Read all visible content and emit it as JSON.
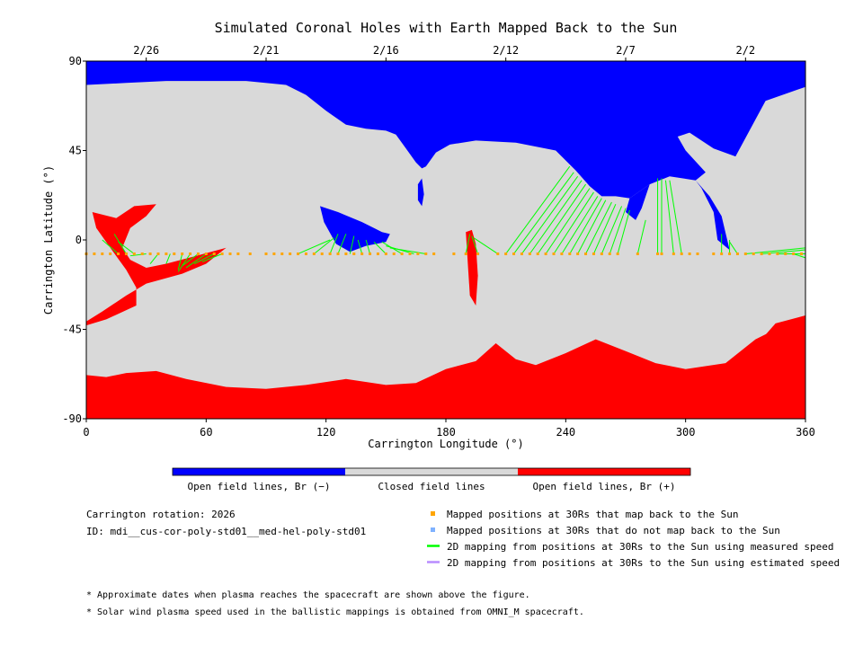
{
  "chart_data": {
    "type": "map",
    "title": "Simulated Coronal Holes with Earth Mapped Back to the Sun",
    "xlabel": "Carrington Longitude (°)",
    "ylabel": "Carrington Latitude (°)",
    "xlim": [
      0,
      360
    ],
    "ylim": [
      -90,
      90
    ],
    "x_ticks": [
      "0",
      "60",
      "120",
      "180",
      "240",
      "300",
      "360"
    ],
    "y_ticks": [
      "90",
      "45",
      "0",
      "-45",
      "-90"
    ],
    "top_date_ticks": [
      {
        "label": "2/26",
        "lon": 30
      },
      {
        "label": "2/21",
        "lon": 90
      },
      {
        "label": "2/16",
        "lon": 150
      },
      {
        "label": "2/12",
        "lon": 210
      },
      {
        "label": "2/7",
        "lon": 270
      },
      {
        "label": "2/2",
        "lon": 330
      }
    ],
    "colorbar": [
      {
        "label": "Open field lines, Br (−)",
        "color": "#0000ff"
      },
      {
        "label": "Closed field lines",
        "color": "#d9d9d9"
      },
      {
        "label": "Open field lines, Br (+)",
        "color": "#ff0000"
      }
    ],
    "north_boundary": [
      [
        0,
        78
      ],
      [
        20,
        79
      ],
      [
        40,
        80
      ],
      [
        60,
        80
      ],
      [
        80,
        80
      ],
      [
        100,
        78
      ],
      [
        110,
        73
      ],
      [
        120,
        65
      ],
      [
        130,
        58
      ],
      [
        140,
        56
      ],
      [
        150,
        55
      ],
      [
        155,
        53
      ],
      [
        160,
        46
      ],
      [
        165,
        39
      ],
      [
        168,
        36
      ],
      [
        170,
        37
      ],
      [
        175,
        44
      ],
      [
        182,
        48
      ],
      [
        195,
        50
      ],
      [
        215,
        49
      ],
      [
        235,
        45
      ],
      [
        245,
        35
      ],
      [
        252,
        27
      ],
      [
        258,
        22
      ],
      [
        265,
        22
      ],
      [
        272,
        21
      ],
      [
        282,
        28
      ],
      [
        292,
        32
      ],
      [
        305,
        30
      ],
      [
        310,
        34
      ],
      [
        300,
        45
      ],
      [
        296,
        52
      ],
      [
        302,
        54
      ],
      [
        314,
        46
      ],
      [
        325,
        42
      ],
      [
        340,
        70
      ],
      [
        360,
        77
      ]
    ],
    "south_boundary": [
      [
        0,
        -68
      ],
      [
        10,
        -69
      ],
      [
        20,
        -67
      ],
      [
        35,
        -66
      ],
      [
        50,
        -70
      ],
      [
        70,
        -74
      ],
      [
        90,
        -75
      ],
      [
        110,
        -73
      ],
      [
        130,
        -70
      ],
      [
        150,
        -73
      ],
      [
        165,
        -72
      ],
      [
        180,
        -65
      ],
      [
        195,
        -61
      ],
      [
        205,
        -52
      ],
      [
        215,
        -60
      ],
      [
        225,
        -63
      ],
      [
        240,
        -57
      ],
      [
        255,
        -50
      ],
      [
        270,
        -56
      ],
      [
        285,
        -62
      ],
      [
        300,
        -65
      ],
      [
        320,
        -62
      ],
      [
        335,
        -50
      ],
      [
        345,
        -45
      ],
      [
        360,
        -38
      ]
    ],
    "coronal_holes": [
      {
        "sign": "negative",
        "points": [
          [
            117,
            17
          ],
          [
            126,
            14
          ],
          [
            138,
            9
          ],
          [
            148,
            4
          ],
          [
            152,
            3
          ],
          [
            150,
            -1
          ],
          [
            140,
            -3
          ],
          [
            132,
            -6
          ],
          [
            125,
            -2
          ],
          [
            119,
            9
          ]
        ]
      },
      {
        "sign": "negative",
        "points": [
          [
            168,
            31
          ],
          [
            169,
            23
          ],
          [
            168,
            17
          ],
          [
            166,
            20
          ],
          [
            166,
            28
          ]
        ]
      },
      {
        "sign": "negative",
        "points": [
          [
            272,
            21
          ],
          [
            282,
            28
          ],
          [
            278,
            16
          ],
          [
            275,
            10
          ],
          [
            270,
            14
          ]
        ]
      },
      {
        "sign": "negative",
        "points": [
          [
            305,
            30
          ],
          [
            312,
            22
          ],
          [
            318,
            12
          ],
          [
            322,
            -5
          ],
          [
            316,
            0
          ],
          [
            314,
            14
          ],
          [
            308,
            26
          ]
        ]
      },
      {
        "sign": "positive",
        "points": [
          [
            3,
            14
          ],
          [
            15,
            11
          ],
          [
            24,
            17
          ],
          [
            35,
            18
          ],
          [
            30,
            12
          ],
          [
            22,
            6
          ],
          [
            18,
            -4
          ],
          [
            22,
            -10
          ],
          [
            30,
            -14
          ],
          [
            40,
            -12
          ],
          [
            55,
            -8
          ],
          [
            70,
            -4
          ],
          [
            60,
            -12
          ],
          [
            48,
            -17
          ],
          [
            30,
            -22
          ],
          [
            20,
            -28
          ],
          [
            8,
            -36
          ],
          [
            0,
            -41
          ],
          [
            0,
            -43
          ],
          [
            10,
            -40
          ],
          [
            25,
            -33
          ],
          [
            25,
            -24
          ],
          [
            20,
            -15
          ],
          [
            12,
            -4
          ],
          [
            5,
            6
          ]
        ]
      },
      {
        "sign": "positive",
        "points": [
          [
            190,
            4
          ],
          [
            193,
            5
          ],
          [
            195,
            -2
          ],
          [
            196,
            -18
          ],
          [
            195,
            -33
          ],
          [
            192,
            -28
          ],
          [
            191,
            -12
          ]
        ]
      },
      {
        "sign": "positive",
        "points": [
          [
            360,
            -38
          ],
          [
            345,
            -42
          ],
          [
            338,
            -50
          ],
          [
            345,
            -62
          ],
          [
            360,
            -68
          ]
        ]
      }
    ],
    "mapped_positions_lat": -7,
    "mapped_positions_lon": [
      0,
      4,
      8,
      12,
      16,
      20,
      24,
      28,
      32,
      36,
      40,
      44,
      48,
      52,
      56,
      60,
      64,
      68,
      72,
      76,
      82,
      90,
      94,
      98,
      102,
      106,
      110,
      114,
      118,
      122,
      126,
      130,
      134,
      138,
      142,
      146,
      150,
      154,
      158,
      162,
      166,
      170,
      174,
      184,
      190,
      196,
      206,
      210,
      214,
      218,
      222,
      226,
      230,
      234,
      238,
      242,
      246,
      250,
      254,
      258,
      262,
      266,
      276,
      286,
      288,
      294,
      298,
      302,
      306,
      314,
      318,
      322,
      326,
      330,
      334,
      338,
      342,
      346,
      350,
      354,
      358
    ],
    "mapped_lines_measured": [
      [
        [
          16,
          -7
        ],
        [
          8,
          0
        ]
      ],
      [
        [
          20,
          -7
        ],
        [
          14,
          3
        ]
      ],
      [
        [
          24,
          -7
        ],
        [
          16,
          -1
        ]
      ],
      [
        [
          30,
          -7
        ],
        [
          22,
          -8
        ]
      ],
      [
        [
          36,
          -7
        ],
        [
          32,
          -12
        ]
      ],
      [
        [
          42,
          -7
        ],
        [
          40,
          -12
        ]
      ],
      [
        [
          48,
          -7
        ],
        [
          46,
          -15
        ]
      ],
      [
        [
          52,
          -7
        ],
        [
          46,
          -16
        ]
      ],
      [
        [
          56,
          -7
        ],
        [
          48,
          -13
        ]
      ],
      [
        [
          60,
          -7
        ],
        [
          50,
          -14
        ]
      ],
      [
        [
          64,
          -7
        ],
        [
          54,
          -12
        ]
      ],
      [
        [
          68,
          -7
        ],
        [
          58,
          -11
        ]
      ],
      [
        [
          106,
          -7
        ],
        [
          122,
          0
        ]
      ],
      [
        [
          114,
          -7
        ],
        [
          124,
          1
        ]
      ],
      [
        [
          122,
          -7
        ],
        [
          126,
          3
        ]
      ],
      [
        [
          126,
          -7
        ],
        [
          130,
          3
        ]
      ],
      [
        [
          132,
          -7
        ],
        [
          134,
          2
        ]
      ],
      [
        [
          138,
          -7
        ],
        [
          136,
          0
        ]
      ],
      [
        [
          142,
          -7
        ],
        [
          140,
          0
        ]
      ],
      [
        [
          150,
          -7
        ],
        [
          144,
          -1
        ]
      ],
      [
        [
          158,
          -7
        ],
        [
          148,
          -1
        ]
      ],
      [
        [
          164,
          -7
        ],
        [
          150,
          -3
        ]
      ],
      [
        [
          170,
          -7
        ],
        [
          152,
          -4
        ]
      ],
      [
        [
          190,
          -7
        ],
        [
          192,
          3
        ]
      ],
      [
        [
          196,
          -7
        ],
        [
          193,
          2
        ]
      ],
      [
        [
          206,
          -7
        ],
        [
          194,
          1
        ]
      ],
      [
        [
          210,
          -7
        ],
        [
          242,
          37
        ]
      ],
      [
        [
          214,
          -7
        ],
        [
          244,
          34
        ]
      ],
      [
        [
          218,
          -7
        ],
        [
          246,
          32
        ]
      ],
      [
        [
          222,
          -7
        ],
        [
          248,
          30
        ]
      ],
      [
        [
          226,
          -7
        ],
        [
          250,
          28
        ]
      ],
      [
        [
          230,
          -7
        ],
        [
          252,
          26
        ]
      ],
      [
        [
          234,
          -7
        ],
        [
          254,
          24
        ]
      ],
      [
        [
          238,
          -7
        ],
        [
          256,
          22
        ]
      ],
      [
        [
          242,
          -7
        ],
        [
          258,
          21
        ]
      ],
      [
        [
          246,
          -7
        ],
        [
          260,
          20
        ]
      ],
      [
        [
          250,
          -7
        ],
        [
          263,
          19
        ]
      ],
      [
        [
          254,
          -7
        ],
        [
          265,
          18
        ]
      ],
      [
        [
          258,
          -7
        ],
        [
          268,
          17
        ]
      ],
      [
        [
          262,
          -7
        ],
        [
          270,
          16
        ]
      ],
      [
        [
          266,
          -7
        ],
        [
          272,
          15
        ]
      ],
      [
        [
          276,
          -7
        ],
        [
          280,
          10
        ]
      ],
      [
        [
          286,
          -7
        ],
        [
          286,
          31
        ]
      ],
      [
        [
          288,
          -7
        ],
        [
          288,
          31
        ]
      ],
      [
        [
          294,
          -7
        ],
        [
          290,
          30
        ]
      ],
      [
        [
          298,
          -7
        ],
        [
          292,
          30
        ]
      ],
      [
        [
          318,
          -7
        ],
        [
          318,
          3
        ]
      ],
      [
        [
          322,
          -7
        ],
        [
          322,
          0
        ]
      ],
      [
        [
          326,
          -7
        ],
        [
          322,
          -1
        ]
      ],
      [
        [
          330,
          -7
        ],
        [
          360,
          -4
        ]
      ],
      [
        [
          338,
          -7
        ],
        [
          360,
          -5
        ]
      ],
      [
        [
          346,
          -7
        ],
        [
          360,
          -7
        ]
      ],
      [
        [
          354,
          -7
        ],
        [
          360,
          -9
        ]
      ]
    ],
    "carrington_rotation": "Carrington rotation: 2026",
    "model_id": "ID: mdi__cus-cor-poly-std01__med-hel-poly-std01",
    "legend": [
      {
        "label": "Mapped positions at 30Rs that map back to the Sun",
        "color": "#ffa500",
        "kind": "square"
      },
      {
        "label": "Mapped positions at 30Rs that do not map back to the Sun",
        "color": "#7fb2ff",
        "kind": "square"
      },
      {
        "label": "2D mapping from positions at 30Rs to the Sun using measured speed",
        "color": "#00ff00",
        "kind": "line"
      },
      {
        "label": "2D mapping from positions at 30Rs to the Sun using estimated speed",
        "color": "#b98cff",
        "kind": "line"
      }
    ],
    "footnotes": [
      "* Approximate dates when plasma reaches the spacecraft are shown above the figure.",
      "* Solar wind plasma speed used in the ballistic mappings is obtained from OMNI_M spacecraft."
    ]
  }
}
